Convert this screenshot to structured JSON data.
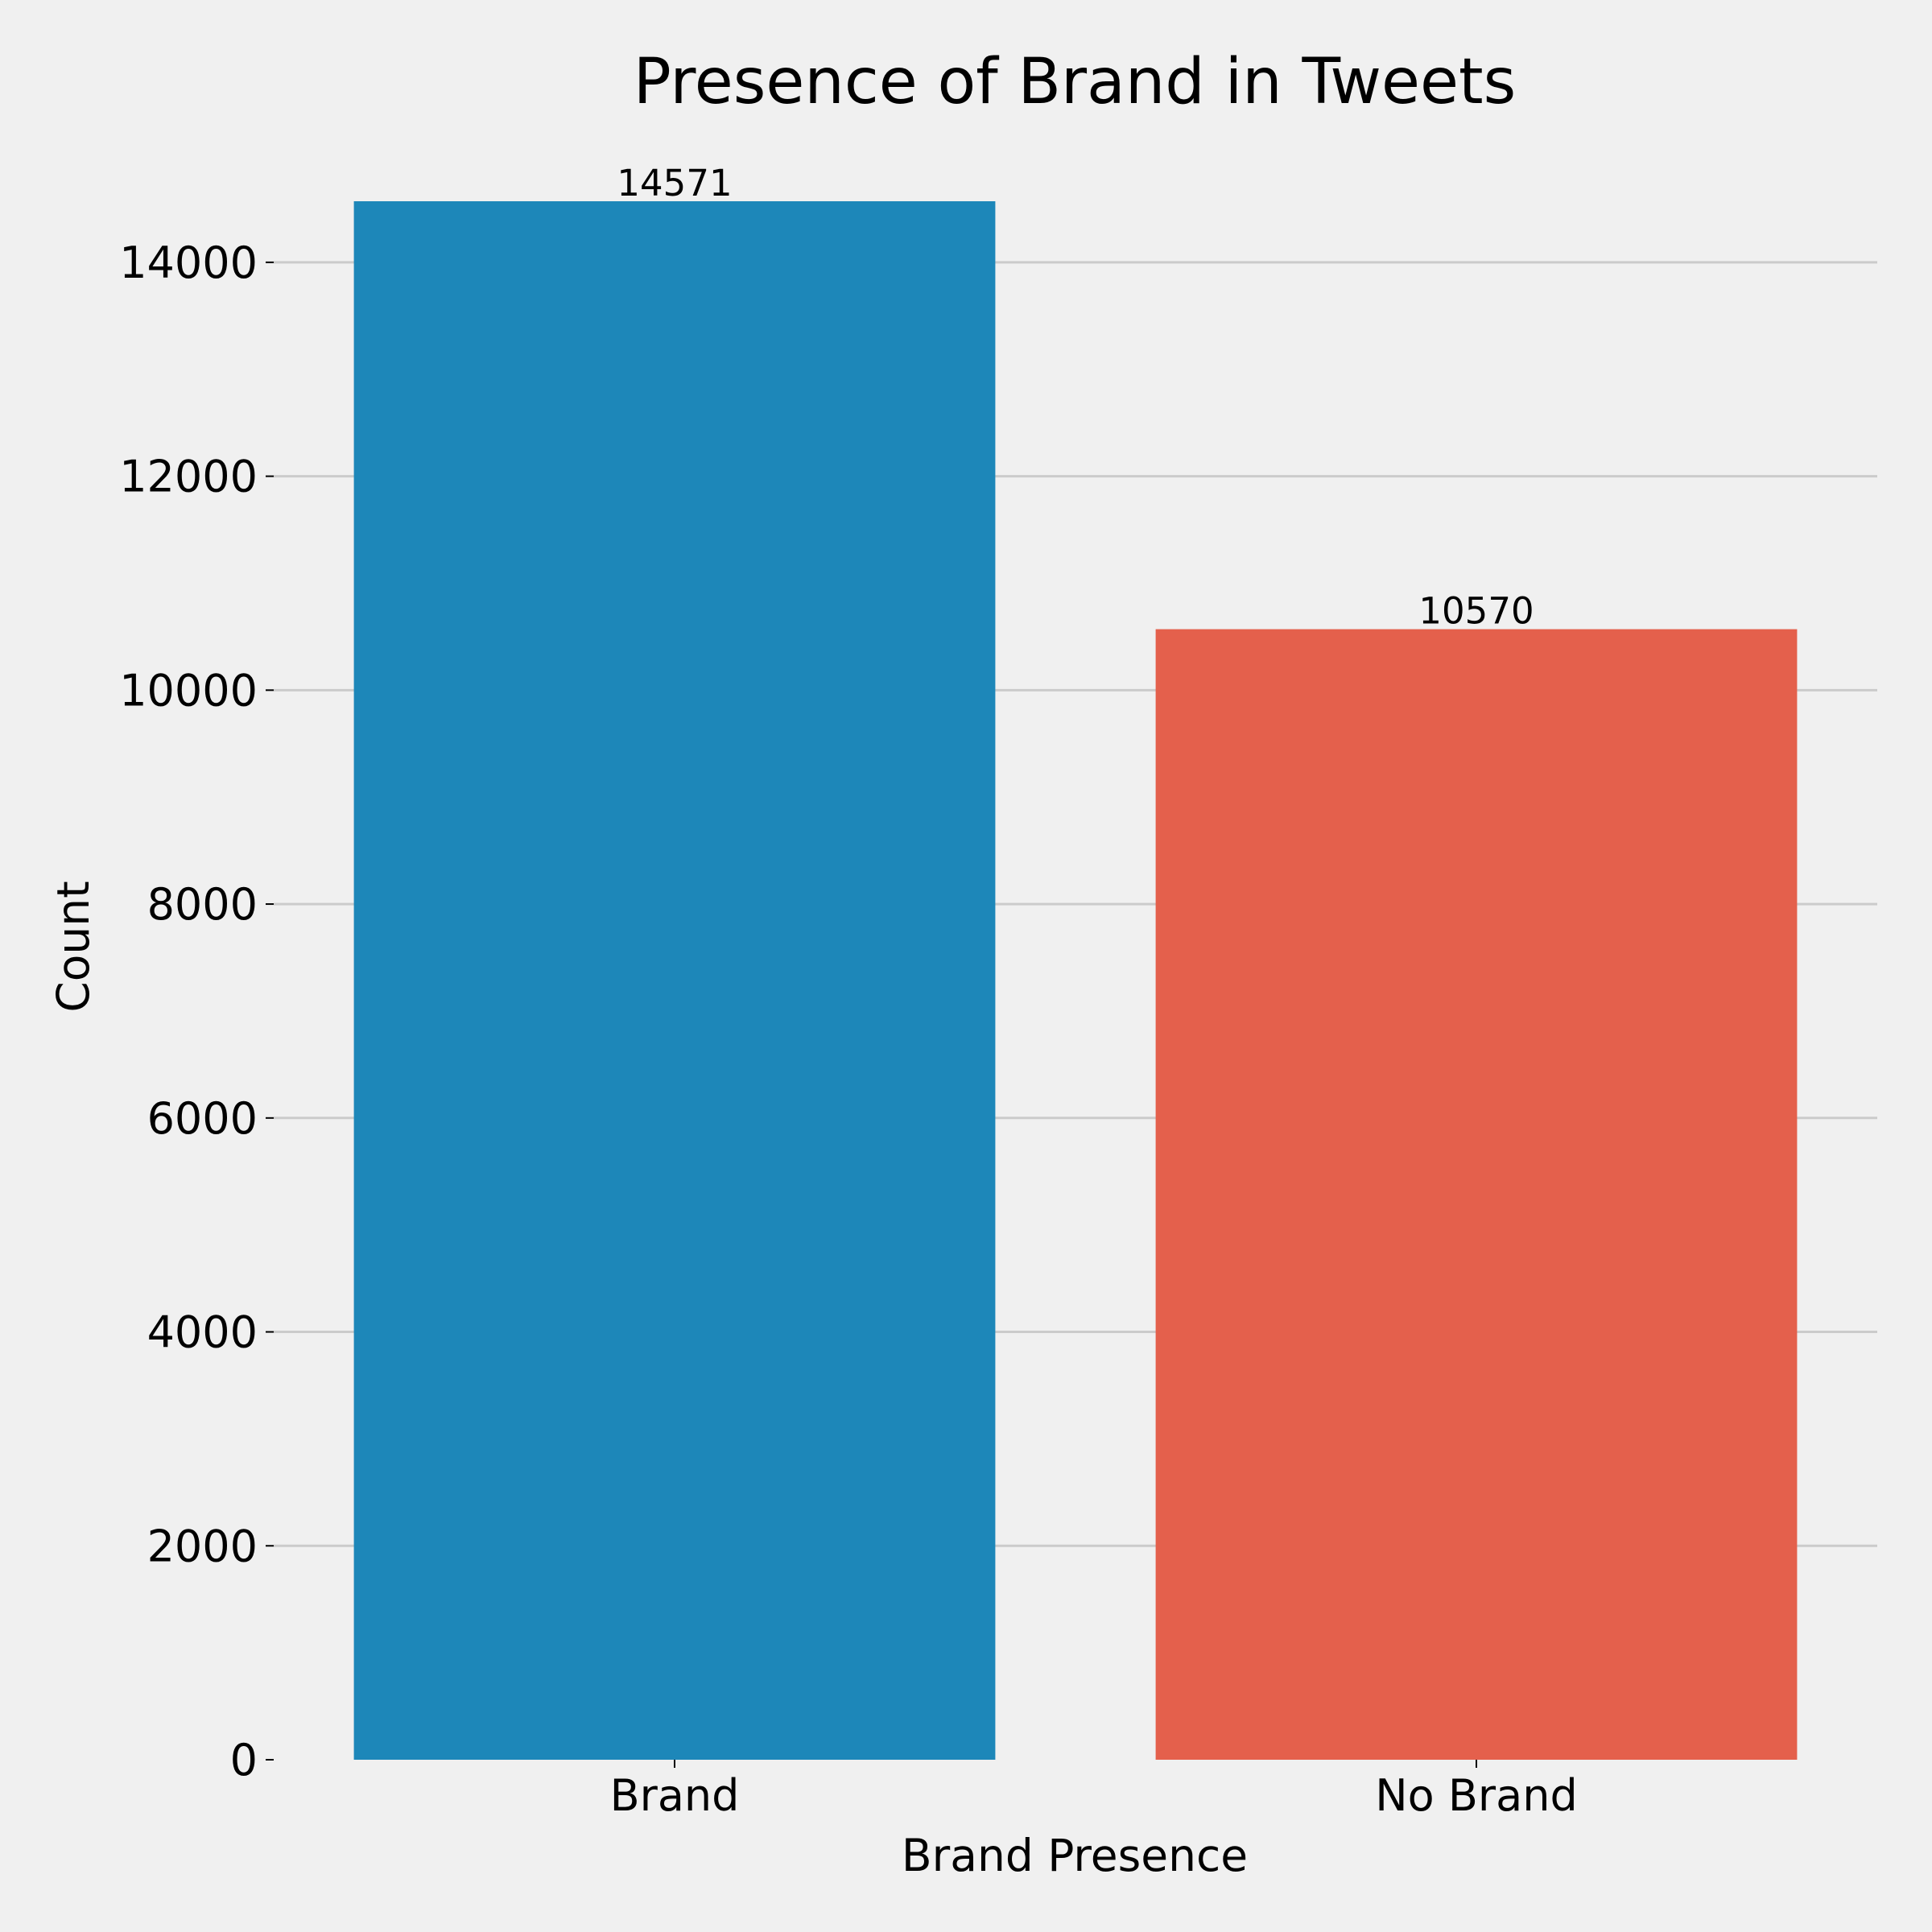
{
  "chart_data": {
    "type": "bar",
    "title": "Presence of Brand in Tweets",
    "xlabel": "Brand Presence",
    "ylabel": "Count",
    "categories": [
      "Brand",
      "No Brand"
    ],
    "values": [
      14571,
      10570
    ],
    "value_labels": [
      "14571",
      "10570"
    ],
    "colors": [
      "#1d87b9",
      "#e4604c"
    ],
    "ylim": [
      0,
      14571
    ],
    "yticks": [
      0,
      2000,
      4000,
      6000,
      8000,
      10000,
      12000,
      14000
    ],
    "ytick_labels": [
      "0",
      "2000",
      "4000",
      "6000",
      "8000",
      "10000",
      "12000",
      "14000"
    ],
    "grid": "horizontal",
    "legend": "none",
    "background": "#f0f0f0"
  }
}
